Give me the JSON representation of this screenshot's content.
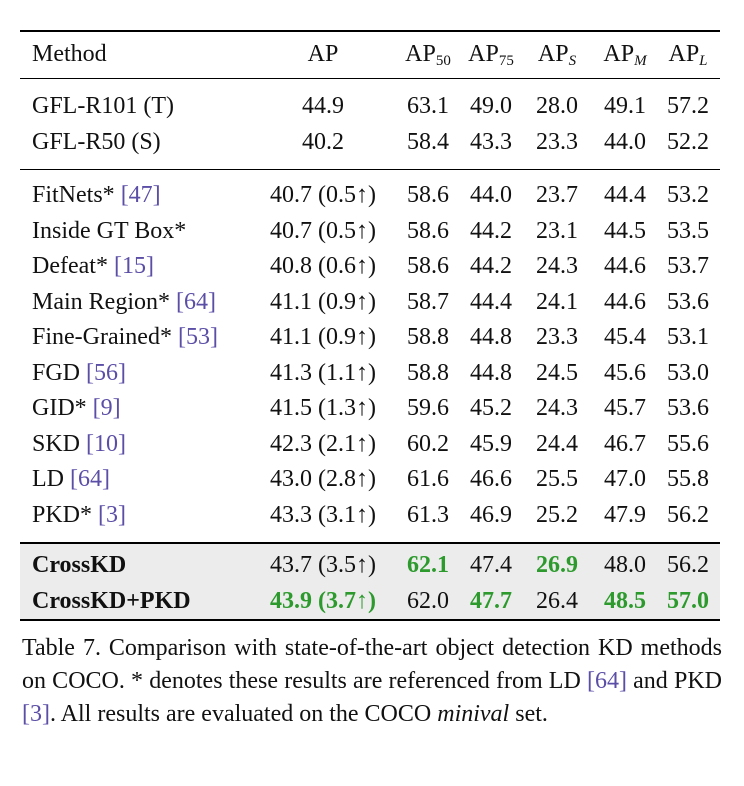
{
  "header": {
    "method": "Method",
    "ap": "AP",
    "ap50": {
      "base": "AP",
      "sub": "50"
    },
    "ap75": {
      "base": "AP",
      "sub": "75"
    },
    "aps": {
      "base": "AP",
      "sub": "S"
    },
    "apm": {
      "base": "AP",
      "sub": "M"
    },
    "apl": {
      "base": "AP",
      "sub": "L"
    }
  },
  "baseline_rows": [
    {
      "method": "GFL-R101 (T)",
      "ap": "44.9",
      "ap50": "63.1",
      "ap75": "49.0",
      "aps": "28.0",
      "apm": "49.1",
      "apl": "57.2"
    },
    {
      "method": "GFL-R50 (S)",
      "ap": "40.2",
      "ap50": "58.4",
      "ap75": "43.3",
      "aps": "23.3",
      "apm": "44.0",
      "apl": "52.2"
    }
  ],
  "comparison_rows": [
    {
      "method": "FitNets*",
      "ref": "[47]",
      "ap": "40.7 (0.5↑)",
      "ap50": "58.6",
      "ap75": "44.0",
      "aps": "23.7",
      "apm": "44.4",
      "apl": "53.2"
    },
    {
      "method": "Inside GT Box*",
      "ref": "",
      "ap": "40.7 (0.5↑)",
      "ap50": "58.6",
      "ap75": "44.2",
      "aps": "23.1",
      "apm": "44.5",
      "apl": "53.5"
    },
    {
      "method": "Defeat*",
      "ref": "[15]",
      "ap": "40.8 (0.6↑)",
      "ap50": "58.6",
      "ap75": "44.2",
      "aps": "24.3",
      "apm": "44.6",
      "apl": "53.7"
    },
    {
      "method": "Main Region*",
      "ref": "[64]",
      "ap": "41.1 (0.9↑)",
      "ap50": "58.7",
      "ap75": "44.4",
      "aps": "24.1",
      "apm": "44.6",
      "apl": "53.6"
    },
    {
      "method": "Fine-Grained*",
      "ref": "[53]",
      "ap": "41.1 (0.9↑)",
      "ap50": "58.8",
      "ap75": "44.8",
      "aps": "23.3",
      "apm": "45.4",
      "apl": "53.1"
    },
    {
      "method": "FGD",
      "ref": "[56]",
      "ap": "41.3 (1.1↑)",
      "ap50": "58.8",
      "ap75": "44.8",
      "aps": "24.5",
      "apm": "45.6",
      "apl": "53.0"
    },
    {
      "method": "GID*",
      "ref": "[9]",
      "ap": "41.5 (1.3↑)",
      "ap50": "59.6",
      "ap75": "45.2",
      "aps": "24.3",
      "apm": "45.7",
      "apl": "53.6"
    },
    {
      "method": "SKD",
      "ref": "[10]",
      "ap": "42.3 (2.1↑)",
      "ap50": "60.2",
      "ap75": "45.9",
      "aps": "24.4",
      "apm": "46.7",
      "apl": "55.6"
    },
    {
      "method": "LD",
      "ref": "[64]",
      "ap": "43.0 (2.8↑)",
      "ap50": "61.6",
      "ap75": "46.6",
      "aps": "25.5",
      "apm": "47.0",
      "apl": "55.8"
    },
    {
      "method": "PKD*",
      "ref": "[3]",
      "ap": "43.3 (3.1↑)",
      "ap50": "61.3",
      "ap75": "46.9",
      "aps": "25.2",
      "apm": "47.9",
      "apl": "56.2"
    }
  ],
  "ours_rows": [
    {
      "method": "CrossKD",
      "ap": "43.7 (3.5↑)",
      "ap50": "62.1",
      "ap75": "47.4",
      "aps": "26.9",
      "apm": "48.0",
      "apl": "56.2"
    },
    {
      "method": "CrossKD+PKD",
      "ap": "43.9 (3.7↑)",
      "ap50": "62.0",
      "ap75": "47.7",
      "aps": "26.4",
      "apm": "48.5",
      "apl": "57.0"
    }
  ],
  "caption": {
    "part1": "Table 7. Comparison with state-of-the-art object detection KD methods on COCO. * denotes these results are referenced from LD ",
    "ref1": "[64]",
    "part2": " and PKD ",
    "ref2": "[3]",
    "part3": ".  All results are evaluated on the COCO ",
    "italic": "minival",
    "part4": " set."
  },
  "colors": {
    "reference": "#5b4ea6",
    "best": "#2c9a2c",
    "highlight_bg": "#ececec"
  }
}
